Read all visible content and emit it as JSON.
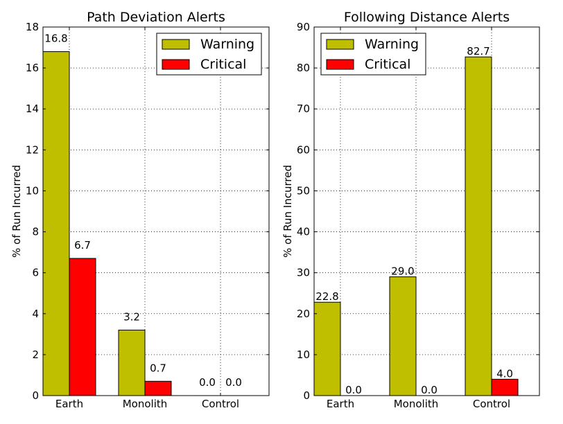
{
  "chart_data": [
    {
      "type": "bar",
      "title": "Path Deviation Alerts",
      "ylabel": "% of Run Incurred",
      "xlabel": "",
      "categories": [
        "Earth",
        "Monolith",
        "Control"
      ],
      "series": [
        {
          "name": "Warning",
          "color": "#bfbf00",
          "values": [
            16.8,
            3.2,
            0.0
          ],
          "labels": [
            "16.8",
            "3.2",
            "0.0"
          ]
        },
        {
          "name": "Critical",
          "color": "#ff0000",
          "values": [
            6.7,
            0.7,
            0.0
          ],
          "labels": [
            "6.7",
            "0.7",
            "0.0"
          ]
        }
      ],
      "ylim": [
        0,
        18
      ],
      "yticks": [
        "0",
        "2",
        "4",
        "6",
        "8",
        "10",
        "12",
        "14",
        "16",
        "18"
      ],
      "grid": true,
      "legend_position": "top-right"
    },
    {
      "type": "bar",
      "title": "Following Distance Alerts",
      "ylabel": "% of Run Incurred",
      "xlabel": "",
      "categories": [
        "Earth",
        "Monolith",
        "Control"
      ],
      "series": [
        {
          "name": "Warning",
          "color": "#bfbf00",
          "values": [
            22.8,
            29.0,
            82.7
          ],
          "labels": [
            "22.8",
            "29.0",
            "82.7"
          ]
        },
        {
          "name": "Critical",
          "color": "#ff0000",
          "values": [
            0.0,
            0.0,
            4.0
          ],
          "labels": [
            "0.0",
            "0.0",
            "4.0"
          ]
        }
      ],
      "ylim": [
        0,
        90
      ],
      "yticks": [
        "0",
        "10",
        "20",
        "30",
        "40",
        "50",
        "60",
        "70",
        "80",
        "90"
      ],
      "grid": true,
      "legend_position": "top-left"
    }
  ]
}
